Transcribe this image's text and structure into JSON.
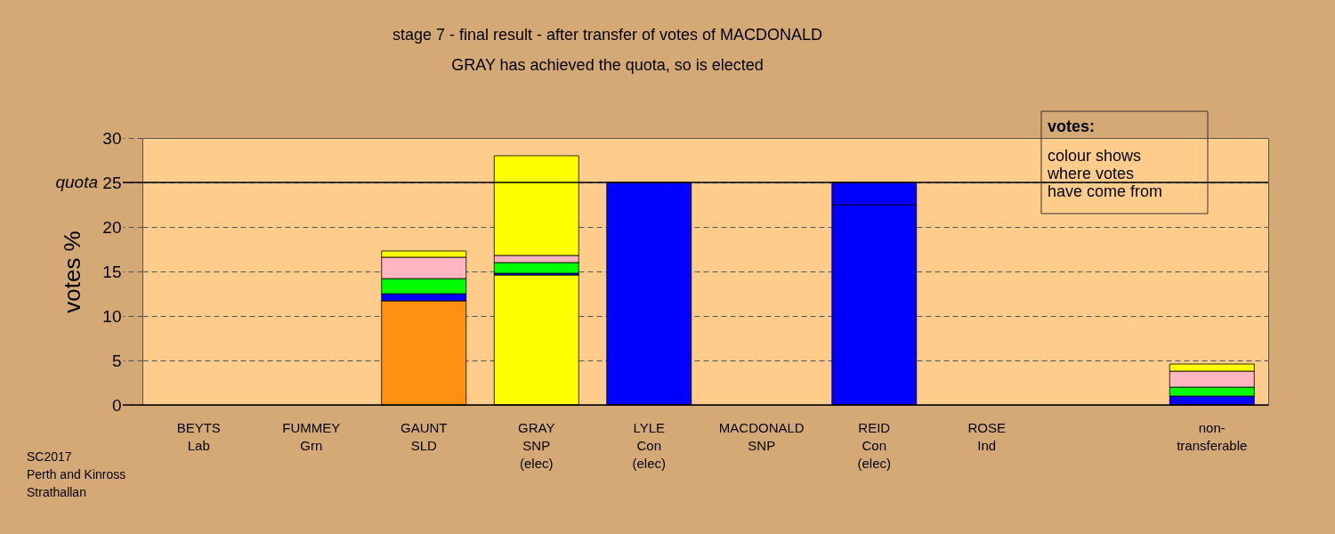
{
  "chart_data": {
    "type": "bar",
    "stacked": true,
    "title": "stage 7 - final result - after transfer of votes of MACDONALD",
    "subtitle": "GRAY has achieved the quota, so is elected",
    "ylabel": "votes %",
    "categories": [
      "BEYTS\nLab",
      "FUMMEY\nGrn",
      "GAUNT\nSLD",
      "GRAY\nSNP\n(elec)",
      "LYLE\nCon\n(elec)",
      "MACDONALD\nSNP",
      "REID\nCon\n(elec)",
      "ROSE\nInd",
      null,
      "non-\ntransferable"
    ],
    "series": [
      {
        "values": [
          null,
          null,
          11.7,
          14.6,
          25,
          null,
          22.5,
          null,
          null,
          null
        ],
        "colors": [
          null,
          null,
          "#ff9010",
          "#ffff00",
          "#0000ff",
          null,
          "#0000ff",
          null,
          null,
          null
        ]
      },
      {
        "color": "#0000ff",
        "values": [
          null,
          null,
          0.8,
          0.2,
          null,
          null,
          2.5,
          null,
          null,
          1.0
        ]
      },
      {
        "color": "#00ff00",
        "values": [
          null,
          null,
          1.7,
          1.2,
          null,
          null,
          null,
          null,
          null,
          1.0
        ]
      },
      {
        "color": "#ffb6c1",
        "values": [
          null,
          null,
          2.4,
          0.8,
          null,
          null,
          null,
          null,
          null,
          1.8
        ]
      },
      {
        "color": "#ffff00",
        "values": [
          null,
          null,
          0.7,
          11.2,
          null,
          null,
          null,
          null,
          null,
          0.8
        ]
      }
    ],
    "ylim": [
      0,
      30
    ],
    "yticks": [
      0,
      5,
      10,
      15,
      20,
      25,
      30
    ],
    "grid": "y",
    "ref_lines": [
      {
        "axis": "y",
        "value": 25,
        "label": "quota",
        "line_style": "solid"
      }
    ],
    "annotations": [
      "votes:",
      "colour shows\nwhere votes\nhave come from",
      "SC2017\nPerth and Kinross\nStrathallan"
    ]
  }
}
